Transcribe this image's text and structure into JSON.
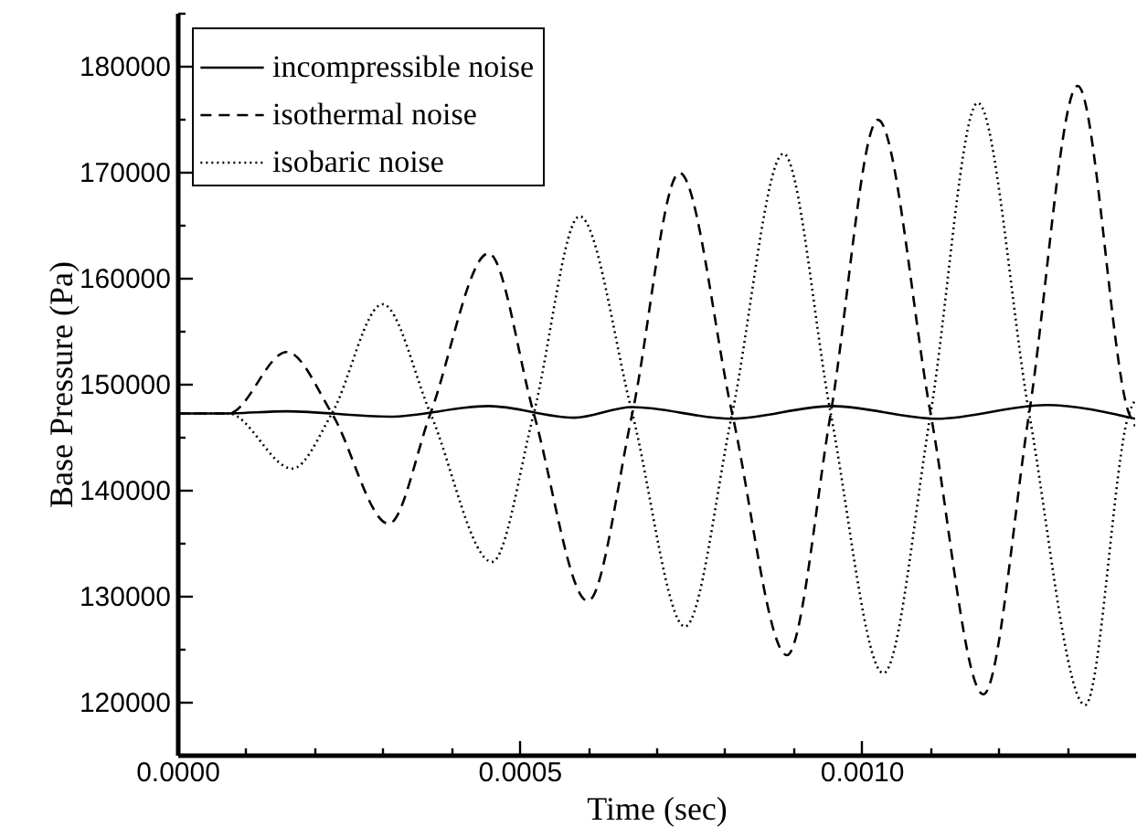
{
  "chart_data": {
    "type": "line",
    "xlabel": "Time (sec)",
    "ylabel": "Base Pressure (Pa)",
    "legend": "top left",
    "grid": false,
    "xlim": [
      0,
      0.0014
    ],
    "xticks": [
      {
        "value": 0,
        "label": "0.0000"
      },
      {
        "value": 0.0001,
        "label": null
      },
      {
        "value": 0.0002,
        "label": null
      },
      {
        "value": 0.0003,
        "label": null
      },
      {
        "value": 0.0004,
        "label": null
      },
      {
        "value": 0.0005,
        "label": "0.0005"
      },
      {
        "value": 0.0006,
        "label": null
      },
      {
        "value": 0.0007,
        "label": null
      },
      {
        "value": 0.0008,
        "label": null
      },
      {
        "value": 0.0009,
        "label": null
      },
      {
        "value": 0.001,
        "label": "0.0010"
      },
      {
        "value": 0.0011,
        "label": null
      },
      {
        "value": 0.0012,
        "label": null
      },
      {
        "value": 0.0013,
        "label": null
      }
    ],
    "ylim": [
      115000,
      185000
    ],
    "yticks": [
      {
        "value": 115000,
        "label": null
      },
      120000,
      {
        "value": 125000,
        "label": null
      },
      130000,
      {
        "value": 135000,
        "label": null
      },
      140000,
      {
        "value": 145000,
        "label": null
      },
      150000,
      {
        "value": 155000,
        "label": null
      },
      160000,
      {
        "value": 165000,
        "label": null
      },
      170000,
      {
        "value": 175000,
        "label": null
      },
      180000,
      {
        "value": 185000,
        "label": null
      }
    ],
    "series": [
      {
        "name": "incompressible noise",
        "color": "#000000",
        "line_style": "solid",
        "x": [
          0,
          7e-05,
          0.00016,
          0.00031,
          0.000455,
          0.00058,
          0.000665,
          0.00081,
          0.000957,
          0.00111,
          0.00127,
          0.0014
        ],
        "values": [
          147200,
          147200,
          147400,
          146900,
          147900,
          146800,
          147800,
          146700,
          147900,
          146700,
          148000,
          146700
        ]
      },
      {
        "name": "isothermal noise",
        "color": "#000000",
        "line_style": "dashed",
        "x": [
          0,
          7.45e-05,
          0.00016,
          0.000226,
          0.000309,
          0.00037,
          0.000455,
          0.000521,
          0.0006,
          0.000665,
          0.000734,
          0.000811,
          0.000891,
          0.000955,
          0.001024,
          0.001101,
          0.001178,
          0.001245,
          0.001316,
          0.001391,
          0.0014
        ],
        "values": [
          147200,
          147200,
          153000,
          147200,
          136800,
          147200,
          162300,
          147200,
          129500,
          147200,
          169900,
          147200,
          124400,
          147200,
          174900,
          147200,
          120700,
          147200,
          178100,
          147200,
          146000
        ]
      },
      {
        "name": "isobaric noise",
        "color": "#000000",
        "line_style": "dotted",
        "x": [
          0,
          7.45e-05,
          0.000168,
          0.000226,
          0.0003,
          0.00037,
          0.00046,
          0.000521,
          0.000588,
          0.000665,
          0.000742,
          0.000811,
          0.000886,
          0.000955,
          0.001032,
          0.001101,
          0.00117,
          0.001245,
          0.001327,
          0.001391,
          0.0014
        ],
        "values": [
          147200,
          147200,
          142000,
          147200,
          157500,
          147200,
          133200,
          147200,
          165800,
          147200,
          127100,
          147200,
          171700,
          147200,
          122700,
          147200,
          176500,
          147200,
          119700,
          147200,
          148500
        ]
      }
    ]
  }
}
